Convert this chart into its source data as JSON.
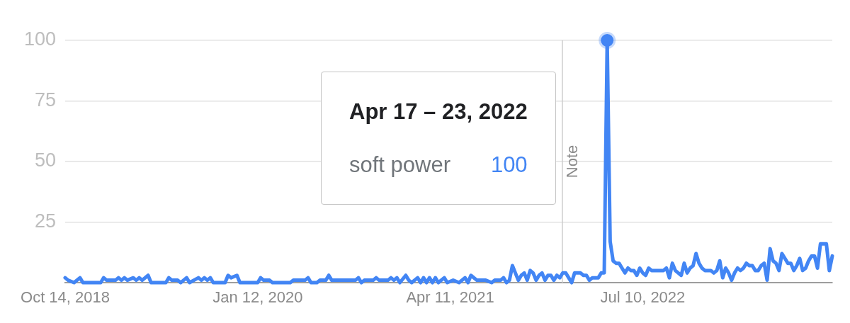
{
  "chart_data": {
    "type": "line",
    "xlim": [
      "2018-10-14",
      "2023-10-01"
    ],
    "xticks": [
      {
        "value": "2018-10-14",
        "label": "Oct 14, 2018"
      },
      {
        "value": "2020-01-12",
        "label": "Jan 12, 2020"
      },
      {
        "value": "2021-04-11",
        "label": "Apr 11, 2021"
      },
      {
        "value": "2022-07-10",
        "label": "Jul 10, 2022"
      }
    ],
    "ylim": [
      0,
      100
    ],
    "yticks": [
      25,
      50,
      75,
      100
    ],
    "grid": "y",
    "ref_lines": [
      {
        "axis": "x",
        "value": "2022-01-01",
        "label": "Note",
        "color": "#cccccc"
      }
    ],
    "annotations": [
      "Apr 17 – 23, 2022",
      "soft power",
      "100"
    ],
    "series": [
      {
        "color": "#4285f4",
        "x": [
          "2018-10-14",
          "2018-10-21",
          "2018-11-04",
          "2018-11-18",
          "2018-11-25",
          "2019-01-06",
          "2019-01-13",
          "2019-01-20",
          "2019-02-10",
          "2019-02-17",
          "2019-02-24",
          "2019-03-03",
          "2019-03-10",
          "2019-03-24",
          "2019-03-31",
          "2019-04-07",
          "2019-04-14",
          "2019-04-28",
          "2019-05-05",
          "2019-06-09",
          "2019-06-16",
          "2019-06-23",
          "2019-07-07",
          "2019-07-14",
          "2019-07-28",
          "2019-08-04",
          "2019-08-25",
          "2019-09-01",
          "2019-09-08",
          "2019-09-15",
          "2019-09-22",
          "2019-09-29",
          "2019-10-27",
          "2019-11-03",
          "2019-11-10",
          "2019-11-24",
          "2019-12-01",
          "2020-01-12",
          "2020-01-19",
          "2020-01-26",
          "2020-02-09",
          "2020-02-16",
          "2020-03-29",
          "2020-04-05",
          "2020-05-03",
          "2020-05-10",
          "2020-05-17",
          "2020-05-31",
          "2020-06-07",
          "2020-06-21",
          "2020-06-28",
          "2020-07-05",
          "2020-08-30",
          "2020-09-06",
          "2020-09-13",
          "2020-09-20",
          "2020-10-11",
          "2020-10-18",
          "2020-10-25",
          "2020-11-15",
          "2020-11-22",
          "2020-11-29",
          "2020-12-06",
          "2020-12-13",
          "2020-12-27",
          "2021-01-03",
          "2021-01-10",
          "2021-01-24",
          "2021-01-31",
          "2021-02-07",
          "2021-02-14",
          "2021-02-21",
          "2021-02-28",
          "2021-03-07",
          "2021-03-14",
          "2021-03-28",
          "2021-04-04",
          "2021-04-18",
          "2021-05-02",
          "2021-05-16",
          "2021-05-23",
          "2021-05-30",
          "2021-06-13",
          "2021-07-04",
          "2021-07-18",
          "2021-07-25",
          "2021-08-08",
          "2021-08-15",
          "2021-08-22",
          "2021-08-29",
          "2021-09-05",
          "2021-09-12",
          "2021-09-19",
          "2021-09-26",
          "2021-10-03",
          "2021-10-10",
          "2021-10-17",
          "2021-10-24",
          "2021-10-31",
          "2021-11-07",
          "2021-11-14",
          "2021-11-21",
          "2021-11-28",
          "2021-12-05",
          "2021-12-12",
          "2021-12-19",
          "2021-12-26",
          "2022-01-02",
          "2022-01-09",
          "2022-01-16",
          "2022-01-23",
          "2022-01-30",
          "2022-02-06",
          "2022-02-13",
          "2022-02-20",
          "2022-02-27",
          "2022-03-06",
          "2022-03-13",
          "2022-03-20",
          "2022-03-27",
          "2022-04-03",
          "2022-04-10",
          "2022-04-17",
          "2022-04-24",
          "2022-05-01",
          "2022-05-08",
          "2022-05-15",
          "2022-05-22",
          "2022-05-29",
          "2022-06-05",
          "2022-06-12",
          "2022-06-19",
          "2022-06-26",
          "2022-07-03",
          "2022-07-10",
          "2022-07-17",
          "2022-07-24",
          "2022-07-31",
          "2022-08-07",
          "2022-08-28",
          "2022-09-04",
          "2022-09-11",
          "2022-09-18",
          "2022-09-25",
          "2022-10-02",
          "2022-10-09",
          "2022-10-16",
          "2022-10-23",
          "2022-10-30",
          "2022-11-06",
          "2022-11-13",
          "2022-11-20",
          "2022-11-27",
          "2022-12-04",
          "2022-12-18",
          "2022-12-25",
          "2023-01-01",
          "2023-01-08",
          "2023-01-15",
          "2023-01-22",
          "2023-01-29",
          "2023-02-05",
          "2023-02-12",
          "2023-02-19",
          "2023-02-26",
          "2023-03-05",
          "2023-03-12",
          "2023-03-19",
          "2023-03-26",
          "2023-04-02",
          "2023-04-09",
          "2023-04-16",
          "2023-04-23",
          "2023-04-30",
          "2023-05-07",
          "2023-05-14",
          "2023-05-21",
          "2023-05-28",
          "2023-06-04",
          "2023-06-11",
          "2023-06-18",
          "2023-06-25",
          "2023-07-02",
          "2023-07-09",
          "2023-07-16",
          "2023-07-23",
          "2023-07-30",
          "2023-08-06",
          "2023-08-13",
          "2023-08-20",
          "2023-08-27",
          "2023-09-03",
          "2023-09-10",
          "2023-09-17",
          "2023-09-24",
          "2023-10-01"
        ],
        "values": [
          2,
          1,
          0,
          2,
          0,
          0,
          2,
          1,
          1,
          2,
          1,
          2,
          1,
          2,
          1,
          2,
          1,
          3,
          0,
          0,
          2,
          1,
          1,
          0,
          2,
          0,
          2,
          1,
          2,
          1,
          2,
          0,
          0,
          3,
          2,
          3,
          0,
          0,
          2,
          1,
          1,
          0,
          0,
          1,
          1,
          2,
          0,
          0,
          1,
          1,
          3,
          1,
          1,
          2,
          0,
          1,
          1,
          2,
          1,
          1,
          2,
          1,
          2,
          0,
          3,
          1,
          0,
          2,
          0,
          2,
          0,
          2,
          0,
          2,
          0,
          2,
          0,
          1,
          0,
          2,
          0,
          3,
          1,
          1,
          0,
          1,
          1,
          2,
          0,
          1,
          7,
          4,
          1,
          3,
          4,
          1,
          5,
          4,
          1,
          3,
          4,
          1,
          3,
          3,
          1,
          3,
          2,
          4,
          4,
          2,
          0,
          4,
          4,
          4,
          3,
          3,
          1,
          2,
          2,
          2,
          4,
          4,
          100,
          17,
          9,
          8,
          8,
          6,
          4,
          6,
          5,
          5,
          3,
          6,
          4,
          3,
          6,
          5,
          5,
          5,
          6,
          2,
          8,
          5,
          4,
          3,
          8,
          4,
          6,
          7,
          12,
          8,
          6,
          5,
          5,
          4,
          5,
          9,
          2,
          6,
          4,
          1,
          4,
          6,
          5,
          6,
          8,
          7,
          7,
          5,
          5,
          7,
          8,
          1,
          14,
          9,
          8,
          5,
          12,
          10,
          8,
          8,
          5,
          7,
          10,
          5,
          6,
          9,
          11,
          11,
          6,
          16,
          16,
          16,
          5,
          11
        ]
      },
      {
        "type": "scatter",
        "color": "#4285f4",
        "marker": "circle",
        "x": [
          "2022-04-17"
        ],
        "values": [
          100
        ]
      }
    ]
  }
}
